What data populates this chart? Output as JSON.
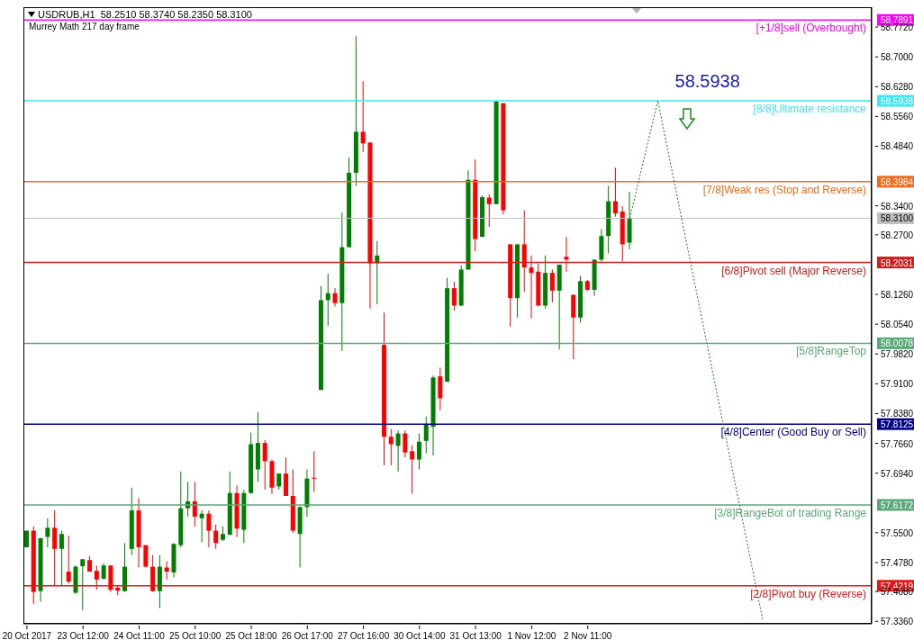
{
  "chart_data": {
    "type": "candlestick",
    "title": "USDRUB,H1  58.2510 58.3740 58.2350 58.3100",
    "subtitle": "Murrey Math 217 day frame",
    "categories": [
      "20 Oct 2017",
      null,
      null,
      null,
      null,
      null,
      null,
      null,
      "23 Oct 12:00",
      null,
      null,
      null,
      null,
      null,
      null,
      null,
      "24 Oct 11:00",
      null,
      null,
      null,
      null,
      null,
      null,
      null,
      "25 Oct 10:00",
      null,
      null,
      null,
      null,
      null,
      null,
      null,
      "25 Oct 18:00",
      null,
      null,
      null,
      null,
      null,
      null,
      null,
      "26 Oct 17:00",
      null,
      null,
      null,
      null,
      null,
      null,
      null,
      "27 Oct 16:00",
      null,
      null,
      null,
      null,
      null,
      null,
      null,
      "30 Oct 14:00",
      null,
      null,
      null,
      null,
      null,
      null,
      null,
      "31 Oct 13:00",
      null,
      null,
      null,
      null,
      null,
      null,
      null,
      "1 Nov 12:00",
      null,
      null,
      null,
      null,
      null,
      null,
      null,
      "2 Nov 11:00",
      null,
      null,
      null,
      null,
      null,
      null,
      null,
      null,
      null,
      null,
      null,
      null,
      null,
      null,
      null,
      null,
      null,
      null,
      null,
      null,
      null,
      null,
      null,
      null,
      null,
      null,
      null,
      null,
      null,
      null,
      null,
      null,
      null,
      null,
      null,
      null,
      null,
      null,
      null,
      null
    ],
    "ohlc": [
      [
        57.515,
        57.555,
        57.515,
        57.555
      ],
      [
        57.555,
        57.565,
        57.378,
        57.407
      ],
      [
        57.409,
        57.537,
        57.383,
        57.537
      ],
      [
        57.54,
        57.585,
        57.515,
        57.562
      ],
      [
        57.562,
        57.604,
        57.422,
        57.511
      ],
      [
        57.511,
        57.555,
        57.422,
        57.547
      ],
      [
        57.456,
        57.543,
        57.427,
        57.432
      ],
      [
        57.405,
        57.471,
        57.402,
        57.468
      ],
      [
        57.469,
        57.486,
        57.363,
        57.486
      ],
      [
        57.484,
        57.494,
        57.456,
        57.456
      ],
      [
        57.458,
        57.471,
        57.412,
        57.437
      ],
      [
        57.439,
        57.476,
        57.437,
        57.471
      ],
      [
        57.471,
        57.471,
        57.407,
        57.412
      ],
      [
        57.417,
        57.422,
        57.399,
        57.41
      ],
      [
        57.409,
        57.525,
        57.407,
        57.468
      ],
      [
        57.511,
        57.659,
        57.496,
        57.604
      ],
      [
        57.604,
        57.634,
        57.466,
        57.515
      ],
      [
        57.52,
        57.52,
        57.466,
        57.468
      ],
      [
        57.468,
        57.496,
        57.407,
        57.409
      ],
      [
        57.409,
        57.496,
        57.368,
        57.468
      ],
      [
        57.466,
        57.481,
        57.437,
        57.456
      ],
      [
        57.454,
        57.525,
        57.442,
        57.523
      ],
      [
        57.52,
        57.698,
        57.515,
        57.609
      ],
      [
        57.609,
        57.673,
        57.589,
        57.626
      ],
      [
        57.626,
        57.673,
        57.565,
        57.589
      ],
      [
        57.585,
        57.604,
        57.527,
        57.596
      ],
      [
        57.596,
        57.604,
        57.515,
        57.555
      ],
      [
        57.555,
        57.57,
        57.511,
        57.525
      ],
      [
        57.533,
        57.565,
        57.53,
        57.547
      ],
      [
        57.545,
        57.698,
        57.545,
        57.646
      ],
      [
        57.646,
        57.664,
        57.54,
        57.56
      ],
      [
        57.557,
        57.654,
        57.525,
        57.646
      ],
      [
        57.646,
        57.792,
        57.644,
        57.764
      ],
      [
        57.703,
        57.841,
        57.673,
        57.767
      ],
      [
        57.767,
        57.774,
        57.654,
        57.723
      ],
      [
        57.723,
        57.727,
        57.644,
        57.659
      ],
      [
        57.662,
        57.693,
        57.654,
        57.693
      ],
      [
        57.693,
        57.732,
        57.639,
        57.639
      ],
      [
        57.639,
        57.703,
        57.55,
        57.555
      ],
      [
        57.547,
        57.614,
        57.466,
        57.612
      ],
      [
        57.612,
        57.703,
        57.589,
        57.681
      ],
      [
        57.683,
        57.747,
        57.649,
        57.681
      ],
      [
        57.895,
        58.146,
        57.895,
        58.112
      ],
      [
        58.112,
        58.176,
        58.05,
        58.129
      ],
      [
        58.129,
        58.141,
        58.097,
        58.105
      ],
      [
        58.105,
        58.324,
        57.989,
        58.24
      ],
      [
        58.24,
        58.457,
        58.24,
        58.42
      ],
      [
        58.42,
        58.75,
        58.388,
        58.519
      ],
      [
        58.519,
        58.641,
        58.47,
        58.491
      ],
      [
        58.493,
        58.493,
        58.092,
        58.201
      ],
      [
        58.201,
        58.255,
        58.102,
        58.22
      ],
      [
        58.004,
        58.082,
        57.713,
        57.782
      ],
      [
        57.782,
        57.801,
        57.713,
        57.764
      ],
      [
        57.76,
        57.797,
        57.698,
        57.79
      ],
      [
        57.79,
        57.797,
        57.732,
        57.744
      ],
      [
        57.747,
        57.762,
        57.644,
        57.727
      ],
      [
        57.727,
        57.79,
        57.703,
        57.77
      ],
      [
        57.772,
        57.831,
        57.742,
        57.811
      ],
      [
        57.806,
        57.93,
        57.737,
        57.925
      ],
      [
        57.928,
        57.949,
        57.846,
        57.875
      ],
      [
        57.915,
        58.166,
        57.915,
        58.141
      ],
      [
        58.141,
        58.156,
        58.087,
        58.099
      ],
      [
        58.099,
        58.196,
        58.097,
        58.186
      ],
      [
        58.186,
        58.426,
        58.186,
        58.403
      ],
      [
        58.403,
        58.452,
        58.23,
        58.26
      ],
      [
        58.265,
        58.365,
        58.265,
        58.361
      ],
      [
        58.36,
        58.368,
        58.289,
        58.344
      ],
      [
        58.344,
        58.594,
        58.344,
        58.592
      ],
      [
        58.588,
        58.588,
        58.319,
        58.329
      ],
      [
        58.247,
        58.247,
        58.048,
        58.117
      ],
      [
        58.117,
        58.247,
        58.07,
        58.247
      ],
      [
        58.247,
        58.329,
        58.132,
        58.191
      ],
      [
        58.191,
        58.22,
        58.068,
        58.178
      ],
      [
        58.181,
        58.201,
        58.097,
        58.099
      ],
      [
        58.099,
        58.22,
        58.092,
        58.178
      ],
      [
        58.178,
        58.186,
        58.107,
        58.135
      ],
      [
        58.135,
        58.198,
        57.993,
        58.198
      ],
      [
        58.217,
        58.265,
        58.181,
        58.21
      ],
      [
        58.125,
        58.125,
        57.969,
        58.07
      ],
      [
        58.07,
        58.171,
        58.058,
        58.158
      ],
      [
        58.158,
        58.161,
        58.134,
        58.137
      ],
      [
        58.137,
        58.21,
        58.122,
        58.21
      ],
      [
        58.21,
        58.284,
        58.205,
        58.267
      ],
      [
        58.267,
        58.388,
        58.225,
        58.351
      ],
      [
        58.351,
        58.432,
        58.314,
        58.322
      ],
      [
        58.326,
        58.339,
        58.206,
        58.247
      ],
      [
        58.251,
        58.374,
        58.235,
        58.31
      ],
      null,
      null,
      null,
      null,
      null,
      null,
      null,
      null,
      null,
      null,
      null,
      null,
      null,
      null,
      null,
      null,
      null,
      null,
      null,
      null,
      null,
      null,
      null,
      null,
      null,
      null,
      null,
      null,
      null,
      null,
      null,
      null,
      null,
      null
    ],
    "series": [
      {
        "type": "line",
        "color": "#1e7a1e",
        "line_style": "dotted",
        "values": [
          null,
          null,
          null,
          null,
          null,
          null,
          null,
          null,
          null,
          null,
          null,
          null,
          null,
          null,
          null,
          null,
          null,
          null,
          null,
          null,
          null,
          null,
          null,
          null,
          null,
          null,
          null,
          null,
          null,
          null,
          null,
          null,
          null,
          null,
          null,
          null,
          null,
          null,
          null,
          null,
          null,
          null,
          null,
          null,
          null,
          null,
          null,
          null,
          null,
          null,
          null,
          null,
          null,
          null,
          null,
          null,
          null,
          null,
          null,
          null,
          null,
          null,
          null,
          null,
          null,
          null,
          null,
          null,
          null,
          null,
          null,
          null,
          null,
          null,
          null,
          null,
          null,
          null,
          null,
          null,
          null,
          null,
          null,
          null,
          null,
          null,
          58.31,
          null,
          null,
          null,
          58.5938,
          null,
          null,
          null,
          null,
          null,
          null,
          null,
          null,
          null,
          null,
          null,
          null,
          null,
          null,
          57.336,
          null,
          null,
          null,
          null,
          null,
          null,
          null,
          null,
          null,
          null,
          null,
          null,
          null,
          null,
          null
        ]
      }
    ],
    "ylim": [
      57.33,
      58.82
    ],
    "yticks": [
      {
        "value": 58.7891,
        "label": "58.7891"
      },
      {
        "value": 58.772,
        "label": "58.7720"
      },
      {
        "value": 58.7,
        "label": "58.7000"
      },
      {
        "value": 58.628,
        "label": "58.6280"
      },
      {
        "value": 58.5938,
        "label": "58.5938"
      },
      {
        "value": 58.556,
        "label": "58.5560"
      },
      {
        "value": 58.484,
        "label": "58.4840"
      },
      {
        "value": 58.3984,
        "label": "58.3984"
      },
      {
        "value": 58.34,
        "label": "58.3400"
      },
      {
        "value": 58.31,
        "label": "58.3100"
      },
      {
        "value": 58.27,
        "label": "58.2700"
      },
      {
        "value": 58.2031,
        "label": "58.2031"
      },
      {
        "value": 58.126,
        "label": "58.1260"
      },
      {
        "value": 58.054,
        "label": "58.0540"
      },
      {
        "value": 58.0078,
        "label": "58.0078"
      },
      {
        "value": 57.982,
        "label": "57.9820"
      },
      {
        "value": 57.91,
        "label": "57.9100"
      },
      {
        "value": 57.838,
        "label": "57.8380"
      },
      {
        "value": 57.8125,
        "label": "57.8125"
      },
      {
        "value": 57.766,
        "label": "57.7660"
      },
      {
        "value": 57.694,
        "label": "57.6940"
      },
      {
        "value": 57.6172,
        "label": "57.6172"
      },
      {
        "value": 57.55,
        "label": "57.5500"
      },
      {
        "value": 57.478,
        "label": "57.4780"
      },
      {
        "value": 57.4219,
        "label": "57.4219"
      },
      {
        "value": 57.408,
        "label": "57.4080"
      },
      {
        "value": 57.336,
        "label": "57.3360"
      }
    ],
    "ref_lines": [
      {
        "axis": "y",
        "value": 58.7891,
        "label": "[+1/8]sell (Overbought)",
        "color": "#ff00ff"
      },
      {
        "axis": "y",
        "value": 58.5938,
        "label": "[8/8]Ultimate resistance",
        "color": "#3ee6ee"
      },
      {
        "axis": "y",
        "value": 58.3984,
        "label": "[7/8]Weak res (Stop and Reverse)",
        "color": "#f26a1b"
      },
      {
        "axis": "y",
        "value": 58.31,
        "label": null,
        "color": "#c0c0c0"
      },
      {
        "axis": "y",
        "value": 58.2031,
        "label": "[6/8]Pivot sell (Major Reverse)",
        "color": "#d01c1c"
      },
      {
        "axis": "y",
        "value": 58.0078,
        "label": "[5/8]RangeTop",
        "color": "#5aa878"
      },
      {
        "axis": "y",
        "value": 57.8125,
        "label": "[4/8]Center (Good Buy or Sell)",
        "color": "#000088"
      },
      {
        "axis": "y",
        "value": 57.6172,
        "label": "[3/8]RangeBot of trading Range",
        "color": "#5aa878"
      },
      {
        "axis": "y",
        "value": 57.4219,
        "label": "[2/8]Pivot buy (Reverse)",
        "color": "#e01818"
      }
    ],
    "annotations": [
      "58.5938"
    ]
  }
}
